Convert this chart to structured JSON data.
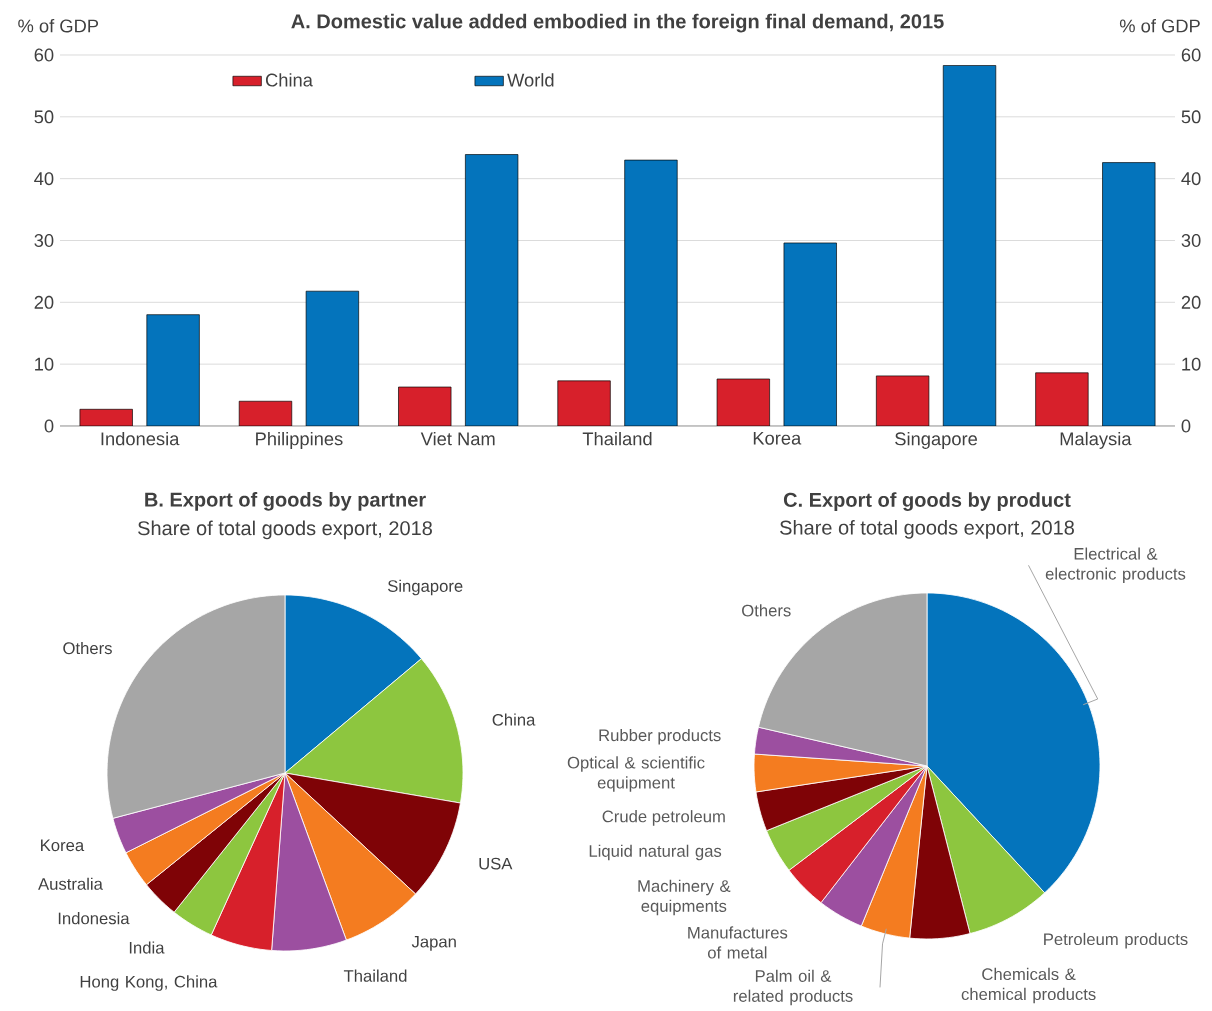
{
  "chart_data": [
    {
      "type": "bar",
      "title": "A. Domestic value added embodied in the foreign final demand, 2015",
      "ylabel": "% of GDP",
      "y2label": "% of GDP",
      "categories": [
        "Indonesia",
        "Philippines",
        "Viet Nam",
        "Thailand",
        "Korea",
        "Singapore",
        "Malaysia"
      ],
      "series": [
        {
          "name": "China",
          "color": "#d7202b",
          "values": [
            2.7,
            4.0,
            6.3,
            7.3,
            7.6,
            8.1,
            8.6
          ]
        },
        {
          "name": "World",
          "color": "#0474bc",
          "values": [
            18.0,
            21.8,
            43.9,
            43.0,
            29.6,
            58.3,
            42.6
          ]
        }
      ],
      "ylim": [
        0,
        60
      ],
      "yticks": [
        0,
        10,
        20,
        30,
        40,
        50,
        60
      ],
      "y2lim": [
        0,
        60
      ],
      "y2ticks": [
        0,
        10,
        20,
        30,
        40,
        50,
        60
      ],
      "grid": "y",
      "legend": "top left"
    },
    {
      "type": "pie",
      "title": "B. Export of goods by partner",
      "subtitle": "Share of total goods export, 2018",
      "categories": [
        "Singapore",
        "China",
        "USA",
        "Japan",
        "Thailand",
        "Hong Kong, China",
        "India",
        "Indonesia",
        "Australia",
        "Korea",
        "Others"
      ],
      "values": [
        13.9,
        13.8,
        9.2,
        7.5,
        6.8,
        5.6,
        3.9,
        3.5,
        3.4,
        3.3,
        29.1
      ],
      "colors": [
        "#0474bc",
        "#8dc63f",
        "#7f0306",
        "#f47c20",
        "#9c4fa0",
        "#d7202b",
        "#8dc63f",
        "#7f0306",
        "#f47c20",
        "#9c4fa0",
        "#a6a6a6"
      ]
    },
    {
      "type": "pie",
      "title": "C. Export of goods by product",
      "subtitle": "Share of total goods export, 2018",
      "categories": [
        "Electrical & electronic products",
        "Petroleum products",
        "Chemicals & chemical products",
        "Palm oil & related products",
        "Manufactures of metal",
        "Machinery & equipments",
        "Liquid natural gas",
        "Crude petroleum",
        "Optical & scientific equipment",
        "Rubber products",
        "Others"
      ],
      "values": [
        38.1,
        7.9,
        5.6,
        4.6,
        4.3,
        4.2,
        4.2,
        3.7,
        3.5,
        2.5,
        21.4
      ],
      "colors": [
        "#0474bc",
        "#8dc63f",
        "#7f0306",
        "#f47c20",
        "#9c4fa0",
        "#d7202b",
        "#8dc63f",
        "#7f0306",
        "#f47c20",
        "#9c4fa0",
        "#a6a6a6"
      ]
    }
  ]
}
